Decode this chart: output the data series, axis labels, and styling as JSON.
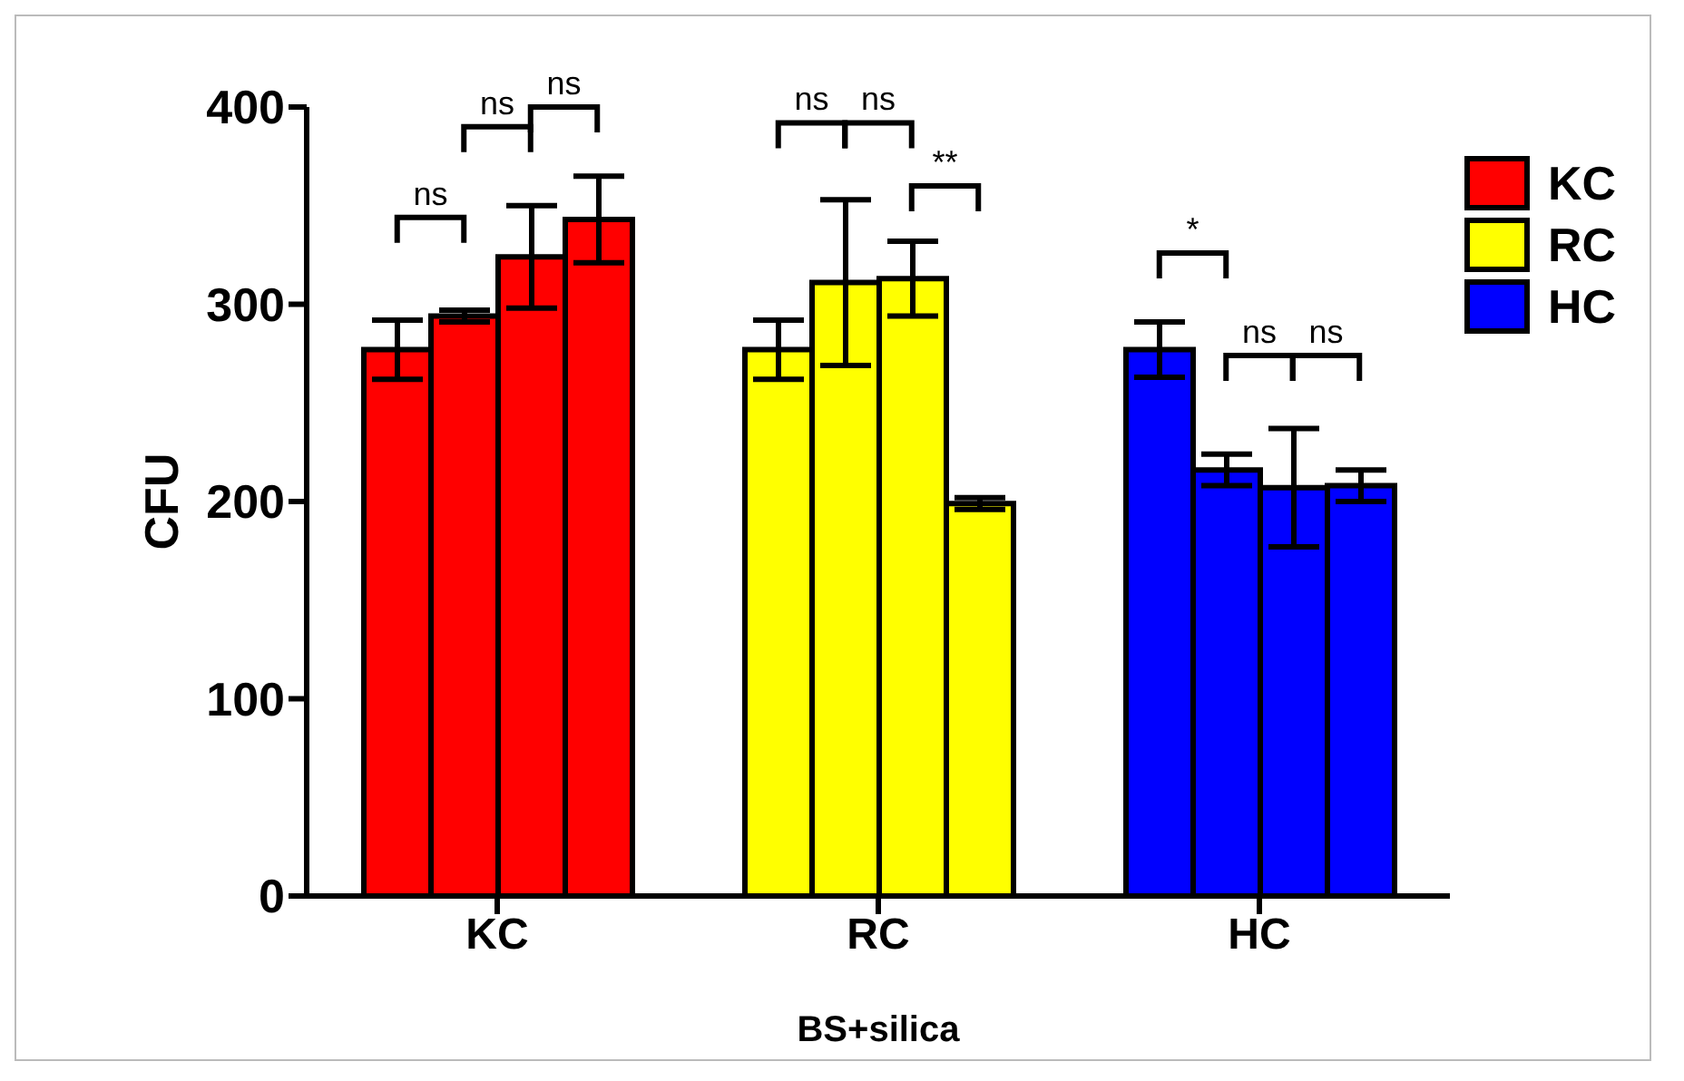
{
  "chart_data": {
    "type": "bar",
    "xlabel": "BS+silica",
    "ylabel": "CFU",
    "categories": [
      "KC",
      "RC",
      "HC"
    ],
    "series": [
      {
        "colors": [
          "#ff0000",
          "#ffff00",
          "#0000ff"
        ],
        "values": [
          277,
          277,
          277
        ],
        "errors": [
          15,
          15,
          14
        ]
      },
      {
        "colors": [
          "#ff0000",
          "#ffff00",
          "#0000ff"
        ],
        "values": [
          294,
          311,
          216
        ],
        "errors": [
          3,
          42,
          8
        ]
      },
      {
        "colors": [
          "#ff0000",
          "#ffff00",
          "#0000ff"
        ],
        "values": [
          324,
          313,
          207
        ],
        "errors": [
          26,
          19,
          30
        ]
      },
      {
        "colors": [
          "#ff0000",
          "#ffff00",
          "#0000ff"
        ],
        "values": [
          343,
          199,
          208
        ],
        "errors": [
          22,
          3,
          8
        ]
      }
    ],
    "ylim": [
      0,
      400
    ],
    "yticks": [
      0,
      100,
      200,
      300,
      400
    ],
    "grid": false,
    "annotations": [
      "ns",
      "ns",
      "ns",
      "ns",
      "ns",
      "**",
      "*",
      "ns",
      "ns"
    ]
  }
}
